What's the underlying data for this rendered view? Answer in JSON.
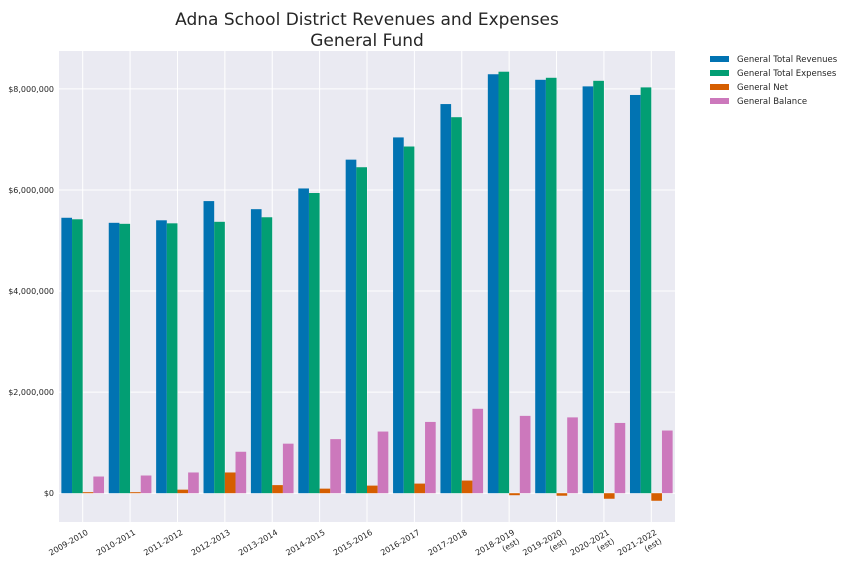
{
  "chart_data": {
    "type": "bar",
    "title": [
      "Adna School District Revenues and Expenses",
      "General Fund"
    ],
    "xlabel": "",
    "ylabel": "",
    "categories": [
      [
        "2009-2010"
      ],
      [
        "2010-2011"
      ],
      [
        "2011-2012"
      ],
      [
        "2012-2013"
      ],
      [
        "2013-2014"
      ],
      [
        "2014-2015"
      ],
      [
        "2015-2016"
      ],
      [
        "2016-2017"
      ],
      [
        "2017-2018"
      ],
      [
        "2018-2019",
        "(est)"
      ],
      [
        "2019-2020",
        "(est)"
      ],
      [
        "2020-2021",
        "(est)"
      ],
      [
        "2021-2022",
        "(est)"
      ]
    ],
    "yticks": [
      0,
      2000000,
      4000000,
      6000000,
      8000000
    ],
    "ytick_labels": [
      "$0",
      "$2,000,000",
      "$4,000,000",
      "$6,000,000",
      "$8,000,000"
    ],
    "ylim": [
      -570000,
      8750000
    ],
    "grid": true,
    "legend_position": "outside-top-right",
    "series": [
      {
        "name": "General Total Revenues",
        "color": "#0173b2",
        "values": [
          5450000,
          5350000,
          5400000,
          5780000,
          5620000,
          6030000,
          6600000,
          7040000,
          7700000,
          8290000,
          8180000,
          8050000,
          7880000
        ]
      },
      {
        "name": "General Total Expenses",
        "color": "#029e73",
        "values": [
          5420000,
          5330000,
          5340000,
          5370000,
          5460000,
          5940000,
          6450000,
          6860000,
          7440000,
          8340000,
          8220000,
          8160000,
          8030000
        ]
      },
      {
        "name": "General Net",
        "color": "#d55e00",
        "values": [
          20000,
          20000,
          70000,
          410000,
          160000,
          90000,
          150000,
          190000,
          250000,
          -40000,
          -50000,
          -110000,
          -150000
        ]
      },
      {
        "name": "General Balance",
        "color": "#cc78bc",
        "values": [
          330000,
          350000,
          410000,
          820000,
          980000,
          1070000,
          1220000,
          1410000,
          1670000,
          1530000,
          1500000,
          1390000,
          1240000
        ]
      }
    ]
  }
}
